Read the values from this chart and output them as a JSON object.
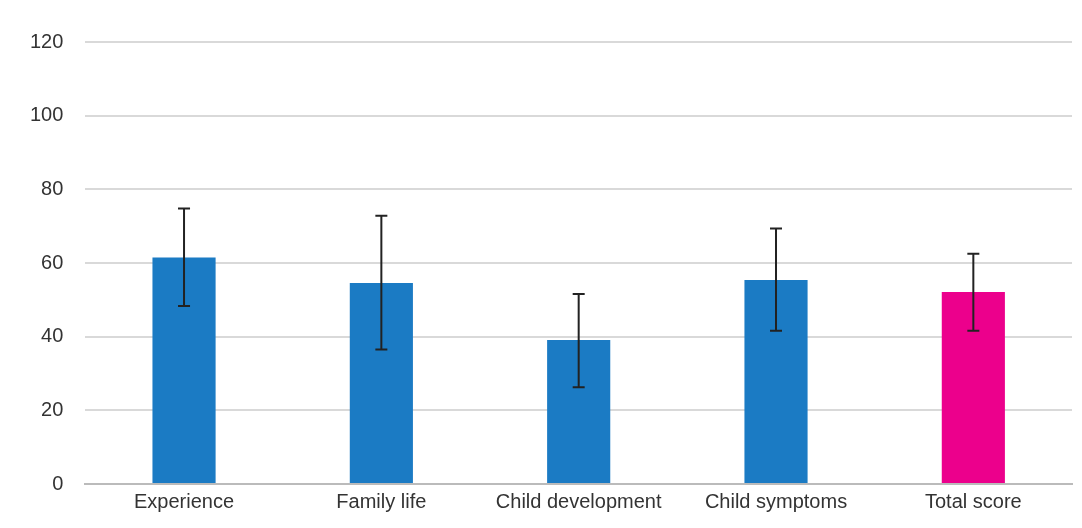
{
  "chart_data": {
    "type": "bar",
    "categories": [
      "Experience",
      "Family life",
      "Child development",
      "Child symptoms",
      "Total score"
    ],
    "values": [
      61.5,
      54.6,
      39.1,
      55.4,
      52.1
    ],
    "colors": [
      "#1b7bc4",
      "#1b7bc4",
      "#1b7bc4",
      "#1b7bc4",
      "#ec008c"
    ],
    "errors": [
      [
        48.3,
        74.8
      ],
      [
        36.5,
        72.8
      ],
      [
        26.3,
        51.6
      ],
      [
        41.6,
        69.4
      ],
      [
        41.6,
        62.5
      ]
    ],
    "ylim": [
      0,
      120
    ],
    "yticks": [
      0,
      20,
      40,
      60,
      80,
      100,
      120
    ],
    "grid": "y",
    "legend": false
  }
}
